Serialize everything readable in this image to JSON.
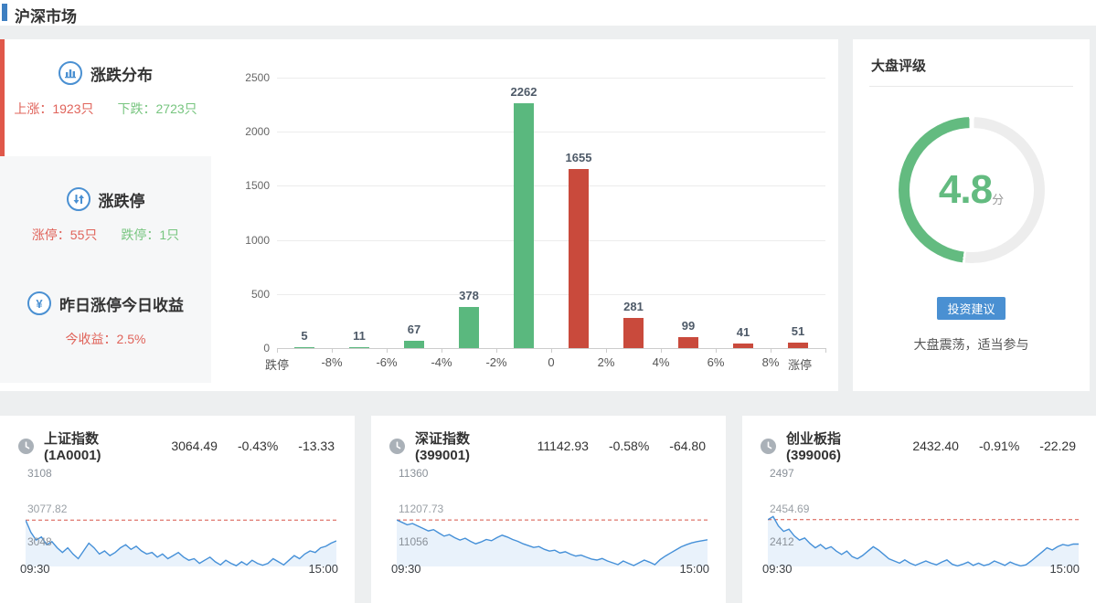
{
  "header": {
    "title": "沪深市场"
  },
  "summary": {
    "distribution": {
      "title": "涨跌分布",
      "up_label": "上涨：1923只",
      "down_label": "下跌：2723只"
    },
    "limit": {
      "title": "涨跌停",
      "up_label": "涨停：55只",
      "down_label": "跌停：1只"
    },
    "yesterday": {
      "title": "昨日涨停今日收益",
      "value_label": "今收益：2.5%"
    }
  },
  "rating": {
    "title": "大盘评级",
    "score": "4.8",
    "score_value": 4.8,
    "score_max": 10,
    "score_unit": "分",
    "button_label": "投资建议",
    "advice": "大盘震荡，适当参与"
  },
  "colors": {
    "up_text_red": "#e0635a",
    "down_text_green": "#77c57f",
    "bar_green": "#5ab87e",
    "bar_red": "#c94a3c",
    "accent_blue": "#4a90d2",
    "gauge_green": "#63bb80",
    "gauge_track": "#ededed",
    "line_blue": "#4590d8",
    "area_blue": "#e9f2fb",
    "prev_close_red": "#d75448"
  },
  "chart_data": [
    {
      "type": "bar",
      "title": "涨跌分布",
      "boundary_labels": [
        "跌停",
        "-8%",
        "-6%",
        "-4%",
        "-2%",
        "0",
        "2%",
        "4%",
        "6%",
        "8%",
        "涨停"
      ],
      "values": [
        5,
        11,
        67,
        378,
        2262,
        1655,
        281,
        99,
        41,
        51
      ],
      "bar_colors": [
        "green",
        "green",
        "green",
        "green",
        "green",
        "red",
        "red",
        "red",
        "red",
        "red"
      ],
      "yticks": [
        0,
        500,
        1000,
        1500,
        2000,
        2500
      ],
      "ylim": [
        0,
        2500
      ],
      "grid": true,
      "legend_position": "none"
    },
    {
      "type": "line",
      "name": "上证指数(1A0001)",
      "price": "3064.49",
      "change_pct": "-0.43%",
      "change": "-13.33",
      "y_top_label": "3108",
      "prev_close_label": "3077.82",
      "y_bottom_label": "3048",
      "x_start_label": "09:30",
      "x_end_label": "15:00",
      "ylim": [
        3048,
        3108
      ],
      "prev_close": 3077.82,
      "points": [
        3077.8,
        3070,
        3065,
        3067,
        3062,
        3064,
        3060,
        3057,
        3060,
        3056,
        3053,
        3058,
        3063,
        3060,
        3056,
        3058,
        3055,
        3057,
        3060,
        3062,
        3059,
        3061,
        3058,
        3056,
        3057,
        3054,
        3056,
        3053,
        3055,
        3057,
        3054,
        3052,
        3053,
        3050,
        3052,
        3054,
        3051,
        3049,
        3052,
        3050,
        3048.5,
        3051,
        3049,
        3052,
        3050,
        3048.8,
        3050,
        3053,
        3051,
        3049,
        3052,
        3055,
        3053,
        3056,
        3058,
        3057,
        3060,
        3061,
        3063,
        3064.5
      ]
    },
    {
      "type": "line",
      "name": "深证指数(399001)",
      "price": "11142.93",
      "change_pct": "-0.58%",
      "change": "-64.80",
      "y_top_label": "11360",
      "prev_close_label": "11207.73",
      "y_bottom_label": "11056",
      "x_start_label": "09:30",
      "x_end_label": "15:00",
      "ylim": [
        11056,
        11360
      ],
      "prev_close": 11207.73,
      "points": [
        11207.7,
        11200,
        11192,
        11196,
        11188,
        11180,
        11172,
        11176,
        11165,
        11155,
        11160,
        11150,
        11142,
        11148,
        11138,
        11130,
        11136,
        11144,
        11140,
        11150,
        11158,
        11152,
        11144,
        11138,
        11130,
        11124,
        11118,
        11121,
        11112,
        11106,
        11109,
        11100,
        11104,
        11096,
        11090,
        11093,
        11086,
        11080,
        11077,
        11082,
        11074,
        11068,
        11062,
        11074,
        11066,
        11059,
        11068,
        11077,
        11070,
        11062,
        11078,
        11090,
        11100,
        11110,
        11120,
        11127,
        11133,
        11137,
        11140,
        11142.9
      ]
    },
    {
      "type": "line",
      "name": "创业板指(399006)",
      "price": "2432.40",
      "change_pct": "-0.91%",
      "change": "-22.29",
      "y_top_label": "2497",
      "prev_close_label": "2454.69",
      "y_bottom_label": "2412",
      "x_start_label": "09:30",
      "x_end_label": "15:00",
      "ylim": [
        2412,
        2497
      ],
      "prev_close": 2454.69,
      "points": [
        2454.7,
        2457.5,
        2449,
        2444,
        2446,
        2440,
        2436,
        2438,
        2433,
        2429,
        2432,
        2428,
        2430,
        2426,
        2423,
        2426,
        2421,
        2419,
        2422,
        2426,
        2430,
        2427,
        2423,
        2419,
        2417,
        2415,
        2418,
        2415,
        2413,
        2415,
        2417,
        2415,
        2413.5,
        2416,
        2418,
        2414,
        2412.5,
        2414,
        2416,
        2413,
        2415,
        2412.8,
        2414,
        2417,
        2415,
        2413,
        2416,
        2414,
        2412.5,
        2413.5,
        2417,
        2421,
        2425,
        2429,
        2427,
        2430,
        2432,
        2431,
        2432.5,
        2432.4
      ]
    }
  ]
}
